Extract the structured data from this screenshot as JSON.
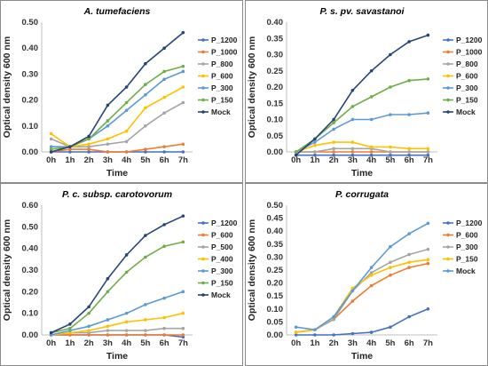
{
  "colors": {
    "P_1200": "#4472c4",
    "P_1000": "#ed7d31",
    "P_800": "#a5a5a5",
    "P_600": "#ffc000",
    "P_500": "#a5a5a5",
    "P_400": "#ffc000",
    "P_300": "#5b9bd5",
    "P_150": "#70ad47",
    "Mock": "#264478"
  },
  "chart_data": [
    {
      "type": "line",
      "title": "A. tumefaciens",
      "xlabel": "Time",
      "ylabel": "Optical density 600 nm",
      "categories": [
        "0h",
        "1h",
        "2h",
        "3h",
        "4h",
        "5h",
        "6h",
        "7h"
      ],
      "ylim": [
        0,
        0.5
      ],
      "yticks": [
        "0.00",
        "0.10",
        "0.20",
        "0.30",
        "0.40",
        "0.50"
      ],
      "grid": false,
      "legend": "right",
      "series": [
        {
          "name": "P_1200",
          "color": "#4472c4",
          "values": [
            0.0,
            0.0,
            0.0,
            0.0,
            0.0,
            0.0,
            0.0,
            0.0
          ]
        },
        {
          "name": "P_1000",
          "color": "#ed7d31",
          "values": [
            0.0,
            0.01,
            0.01,
            0.0,
            0.0,
            0.01,
            0.02,
            0.03
          ]
        },
        {
          "name": "P_800",
          "color": "#a5a5a5",
          "values": [
            0.05,
            0.02,
            0.02,
            0.03,
            0.04,
            0.1,
            0.15,
            0.19
          ]
        },
        {
          "name": "P_600",
          "color": "#ffc000",
          "values": [
            0.07,
            0.02,
            0.03,
            0.05,
            0.08,
            0.17,
            0.21,
            0.25
          ]
        },
        {
          "name": "P_300",
          "color": "#5b9bd5",
          "values": [
            0.02,
            0.02,
            0.05,
            0.1,
            0.16,
            0.22,
            0.28,
            0.31
          ]
        },
        {
          "name": "P_150",
          "color": "#70ad47",
          "values": [
            0.01,
            0.02,
            0.05,
            0.12,
            0.19,
            0.26,
            0.31,
            0.33
          ]
        },
        {
          "name": "Mock",
          "color": "#264478",
          "values": [
            0.0,
            0.02,
            0.06,
            0.18,
            0.25,
            0.34,
            0.4,
            0.46
          ]
        }
      ]
    },
    {
      "type": "line",
      "title": "P. s. pv. savastanoi",
      "xlabel": "Time",
      "ylabel": "Optical density 600 nm",
      "categories": [
        "0h",
        "1h",
        "2h",
        "3h",
        "4h",
        "5h",
        "6h",
        "7h"
      ],
      "ylim": [
        0,
        0.4
      ],
      "yticks": [
        "0.00",
        "0.05",
        "0.10",
        "0.15",
        "0.20",
        "0.25",
        "0.30",
        "0.35",
        "0.40"
      ],
      "grid": false,
      "legend": "right",
      "series": [
        {
          "name": "P_1200",
          "color": "#4472c4",
          "values": [
            -0.01,
            -0.01,
            -0.01,
            -0.01,
            -0.01,
            -0.01,
            -0.01,
            -0.01
          ]
        },
        {
          "name": "P_1000",
          "color": "#ed7d31",
          "values": [
            0.0,
            0.0,
            0.0,
            0.0,
            0.0,
            0.0,
            0.0,
            0.0
          ]
        },
        {
          "name": "P_800",
          "color": "#a5a5a5",
          "values": [
            0.0,
            0.0,
            0.01,
            0.01,
            0.01,
            0.0,
            0.0,
            0.0
          ]
        },
        {
          "name": "P_600",
          "color": "#ffc000",
          "values": [
            0.0,
            0.02,
            0.03,
            0.03,
            0.015,
            0.015,
            0.01,
            0.01
          ]
        },
        {
          "name": "P_300",
          "color": "#5b9bd5",
          "values": [
            0.0,
            0.03,
            0.07,
            0.1,
            0.1,
            0.115,
            0.115,
            0.12
          ]
        },
        {
          "name": "P_150",
          "color": "#70ad47",
          "values": [
            0.0,
            0.04,
            0.09,
            0.14,
            0.17,
            0.2,
            0.22,
            0.225
          ]
        },
        {
          "name": "Mock",
          "color": "#264478",
          "values": [
            -0.01,
            0.04,
            0.1,
            0.19,
            0.25,
            0.3,
            0.34,
            0.36
          ]
        }
      ]
    },
    {
      "type": "line",
      "title": "P. c. subsp. carotovorum",
      "xlabel": "Time",
      "ylabel": "Optical density 600 nm",
      "categories": [
        "0h",
        "1h",
        "2h",
        "3h",
        "4h",
        "5h",
        "6h",
        "7h"
      ],
      "ylim": [
        0,
        0.6
      ],
      "yticks": [
        "0.00",
        "0.10",
        "0.20",
        "0.30",
        "0.40",
        "0.50",
        "0.60"
      ],
      "grid": false,
      "legend": "right",
      "series": [
        {
          "name": "P_1200",
          "color": "#4472c4",
          "values": [
            0.0,
            0.0,
            0.0,
            0.0,
            0.0,
            0.0,
            0.0,
            -0.01
          ]
        },
        {
          "name": "P_600",
          "color": "#ed7d31",
          "values": [
            0.0,
            0.0,
            0.0,
            0.0,
            0.0,
            0.0,
            0.0,
            0.0
          ]
        },
        {
          "name": "P_500",
          "color": "#a5a5a5",
          "values": [
            0.0,
            0.01,
            0.01,
            0.02,
            0.02,
            0.02,
            0.03,
            0.03
          ]
        },
        {
          "name": "P_400",
          "color": "#ffc000",
          "values": [
            0.0,
            0.01,
            0.02,
            0.04,
            0.06,
            0.07,
            0.08,
            0.1
          ]
        },
        {
          "name": "P_300",
          "color": "#5b9bd5",
          "values": [
            0.0,
            0.02,
            0.04,
            0.07,
            0.1,
            0.14,
            0.17,
            0.2
          ]
        },
        {
          "name": "P_150",
          "color": "#70ad47",
          "values": [
            0.01,
            0.03,
            0.1,
            0.2,
            0.29,
            0.36,
            0.41,
            0.43
          ]
        },
        {
          "name": "Mock",
          "color": "#264478",
          "values": [
            0.01,
            0.05,
            0.13,
            0.26,
            0.37,
            0.46,
            0.51,
            0.55
          ]
        }
      ]
    },
    {
      "type": "line",
      "title": "P. corrugata",
      "xlabel": "Time",
      "ylabel": "Optical density 600 nm",
      "categories": [
        "0h",
        "1h",
        "2h",
        "3h",
        "4h",
        "5h",
        "6h",
        "7h"
      ],
      "ylim": [
        0,
        0.5
      ],
      "yticks": [
        "0.00",
        "0.05",
        "0.10",
        "0.15",
        "0.20",
        "0.25",
        "0.30",
        "0.35",
        "0.40",
        "0.45",
        "0.50"
      ],
      "grid": false,
      "legend": "right",
      "series": [
        {
          "name": "P_1200",
          "color": "#4472c4",
          "values": [
            0.0,
            0.0,
            0.0,
            0.005,
            0.01,
            0.03,
            0.07,
            0.1
          ]
        },
        {
          "name": "P_600",
          "color": "#ed7d31",
          "values": [
            0.01,
            0.02,
            0.06,
            0.13,
            0.19,
            0.23,
            0.26,
            0.275
          ]
        },
        {
          "name": "P_300",
          "color": "#a5a5a5",
          "values": [
            0.01,
            0.02,
            0.06,
            0.17,
            0.24,
            0.28,
            0.31,
            0.33
          ]
        },
        {
          "name": "P_150",
          "color": "#ffc000",
          "values": [
            0.01,
            0.02,
            0.07,
            0.18,
            0.23,
            0.26,
            0.28,
            0.29
          ]
        },
        {
          "name": "Mock",
          "color": "#5b9bd5",
          "values": [
            0.03,
            0.02,
            0.07,
            0.17,
            0.26,
            0.34,
            0.39,
            0.43
          ]
        }
      ]
    }
  ]
}
